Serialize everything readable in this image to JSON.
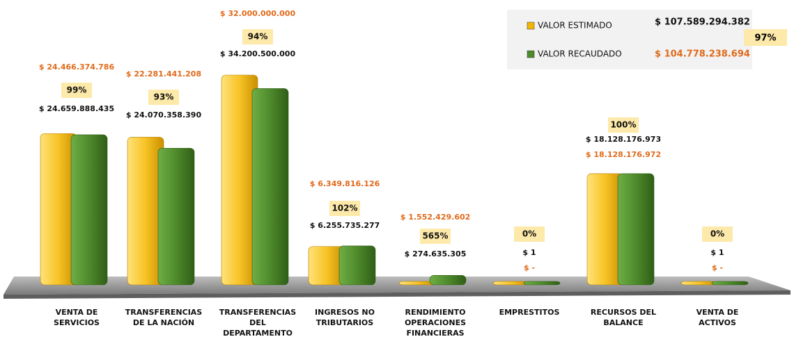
{
  "chart_data": {
    "type": "bar",
    "categories": [
      "VENTA DE\nSERVICIOS",
      "TRANSFERENCIAS\nDE LA NACIÓN",
      "TRANSFERENCIAS\nDEL\nDEPARTAMENTO",
      "INGRESOS NO\nTRIBUTARIOS",
      "RENDIMIENTO\nOPERACIONES\nFINANCIERAS",
      "EMPRESTITOS",
      "RECURSOS DEL\nBALANCE",
      "VENTA DE\nACTIVOS"
    ],
    "series": [
      {
        "name": "VALOR ESTIMADO",
        "color": "#f2b705",
        "values": [
          24659888435,
          24070358390,
          34200500000,
          6255735277,
          274635305,
          1,
          18128176973,
          1
        ],
        "value_labels": [
          "$ 24.659.888.435",
          "$ 24.070.358.390",
          "$ 34.200.500.000",
          "$ 6.255.735.277",
          "$ 274.635.305",
          "$ 1",
          "$ 18.128.176.973",
          "$ 1"
        ]
      },
      {
        "name": "VALOR RECAUDADO",
        "color": "#4e8a2b",
        "values": [
          24466374786,
          22281441208,
          32000000000,
          6349816126,
          1552429602,
          0,
          18128176972,
          0
        ],
        "value_labels": [
          "$ 24.466.374.786",
          "$ 22.281.441.208",
          "$ 32.000.000.000",
          "$ 6.349.816.126",
          "$ 1.552.429.602",
          "$ -",
          "$ 18.128.176.972",
          "$ -"
        ]
      }
    ],
    "percentages": [
      99,
      93,
      94,
      102,
      565,
      0,
      100,
      0
    ],
    "percentage_labels": [
      "99%",
      "93%",
      "94%",
      "102%",
      "565%",
      "0%",
      "100%",
      "0%"
    ],
    "totals": [
      107589294382,
      104778238694
    ],
    "total_labels": [
      "$ 107.589.294.382",
      "$ 104.778.238.694"
    ],
    "total_percentage": 97,
    "total_percentage_label": "97%"
  }
}
